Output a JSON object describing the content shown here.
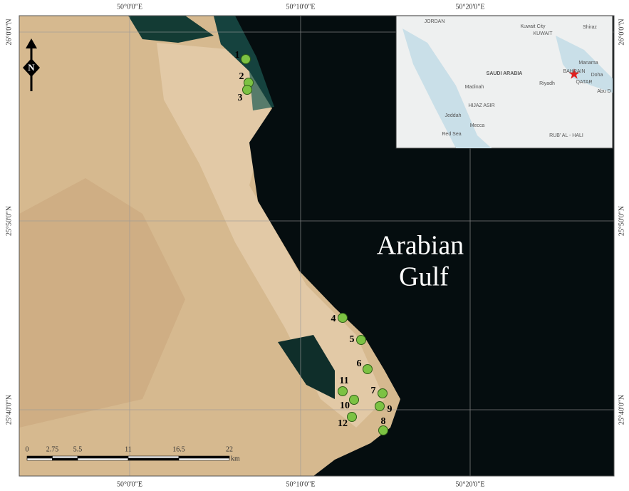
{
  "map": {
    "frame_labels": {
      "top": [
        "50°0'0\"E",
        "50°10'0\"E",
        "50°20'0\"E"
      ],
      "bottom": [
        "50°0'0\"E",
        "50°10'0\"E",
        "50°20'0\"E"
      ],
      "left": [
        "26°0'0\"N",
        "25°50'0\"N",
        "25°40'0\"N"
      ],
      "right": [
        "26°0'0\"N",
        "25°50'0\"N",
        "25°40'0\"N"
      ]
    },
    "sea_label": [
      "Arabian",
      "Gulf"
    ],
    "north": "N",
    "sites": [
      "1",
      "2",
      "3",
      "4",
      "5",
      "6",
      "7",
      "8",
      "9",
      "10",
      "11",
      "12"
    ],
    "scale": {
      "ticks": [
        0,
        2.75,
        5.5,
        11,
        16.5,
        22
      ],
      "unit": "km"
    },
    "inset": {
      "labels": [
        "JORDAN",
        "Kuwait City",
        "KUWAIT",
        "Shiraz",
        "SAUDI ARABIA",
        "Manama",
        "BAHRAIN",
        "Doha",
        "QATAR",
        "Abu D",
        "Madinah",
        "Riyadh",
        "HIJAZ ASIR",
        "Jeddah",
        "Mecca",
        "Red Sea",
        "RUB' AL - HALI"
      ]
    }
  }
}
